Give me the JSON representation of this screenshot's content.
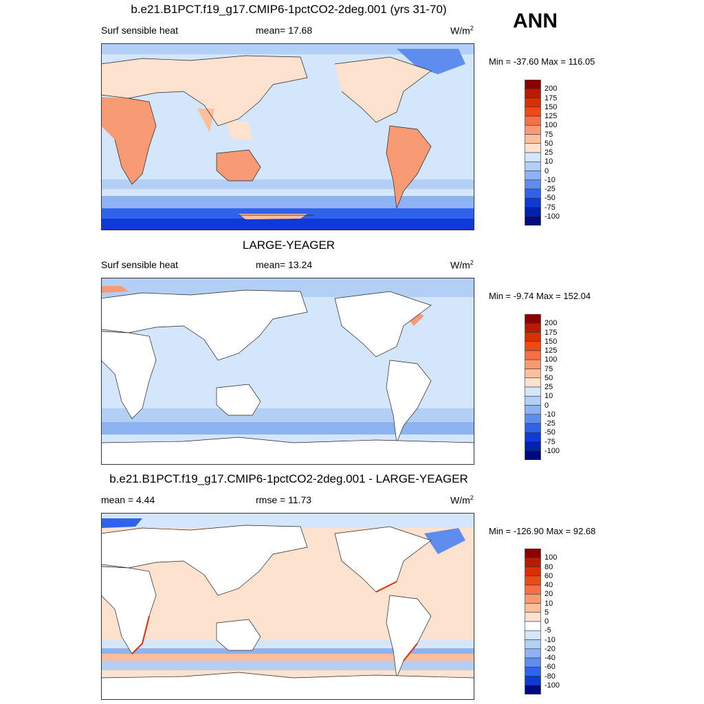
{
  "season": "ANN",
  "panels": [
    {
      "title": "b.e21.B1PCT.f19_g17.CMIP6-1pctCO2-2deg.001 (yrs 31-70)",
      "left_label": "Surf sensible heat",
      "mid_label": "mean=  17.68",
      "units": "W/m",
      "units_sup": "2",
      "minmax": "Min = -37.60 Max = 116.05",
      "colorbar": {
        "levels": [
          "200",
          "175",
          "150",
          "125",
          "100",
          "75",
          "50",
          "25",
          "10",
          "0",
          "-10",
          "-25",
          "-50",
          "-75",
          "-100"
        ],
        "colors": [
          "#8b0000",
          "#b71c00",
          "#d83000",
          "#ee4a18",
          "#f37048",
          "#f89a74",
          "#fbbf9e",
          "#fde2cf",
          "#d4e6fb",
          "#b4cff6",
          "#8eb3f2",
          "#5f8def",
          "#2f64ea",
          "#0e3bd8",
          "#0020b0",
          "#000a80"
        ]
      }
    },
    {
      "title": "LARGE-YEAGER",
      "left_label": "Surf sensible heat",
      "mid_label": "mean=  13.24",
      "units": "W/m",
      "units_sup": "2",
      "minmax": "Min =  -9.74 Max = 152.04",
      "colorbar": {
        "levels": [
          "200",
          "175",
          "150",
          "125",
          "100",
          "75",
          "50",
          "25",
          "10",
          "0",
          "-10",
          "-25",
          "-50",
          "-75",
          "-100"
        ],
        "colors": [
          "#8b0000",
          "#b71c00",
          "#d83000",
          "#ee4a18",
          "#f37048",
          "#f89a74",
          "#fbbf9e",
          "#fde2cf",
          "#d4e6fb",
          "#b4cff6",
          "#8eb3f2",
          "#5f8def",
          "#2f64ea",
          "#0e3bd8",
          "#0020b0",
          "#000a80"
        ]
      }
    },
    {
      "title": "b.e21.B1PCT.f19_g17.CMIP6-1pctCO2-2deg.001 - LARGE-YEAGER",
      "left_label": "mean =   4.44",
      "mid_label": "rmse =  11.73",
      "units": "W/m",
      "units_sup": "2",
      "minmax": "Min = -126.90 Max =  92.68",
      "colorbar": {
        "levels": [
          "100",
          "80",
          "60",
          "40",
          "20",
          "10",
          "5",
          "0",
          "-5",
          "-10",
          "-20",
          "-40",
          "-60",
          "-80",
          "-100"
        ],
        "colors": [
          "#8b0000",
          "#b71c00",
          "#d83000",
          "#ee4a18",
          "#f37048",
          "#f89a74",
          "#fbbf9e",
          "#fde2cf",
          "#ffffff",
          "#d4e6fb",
          "#b4cff6",
          "#8eb3f2",
          "#5f8def",
          "#2f64ea",
          "#0e3bd8",
          "#000a80"
        ]
      }
    }
  ]
}
